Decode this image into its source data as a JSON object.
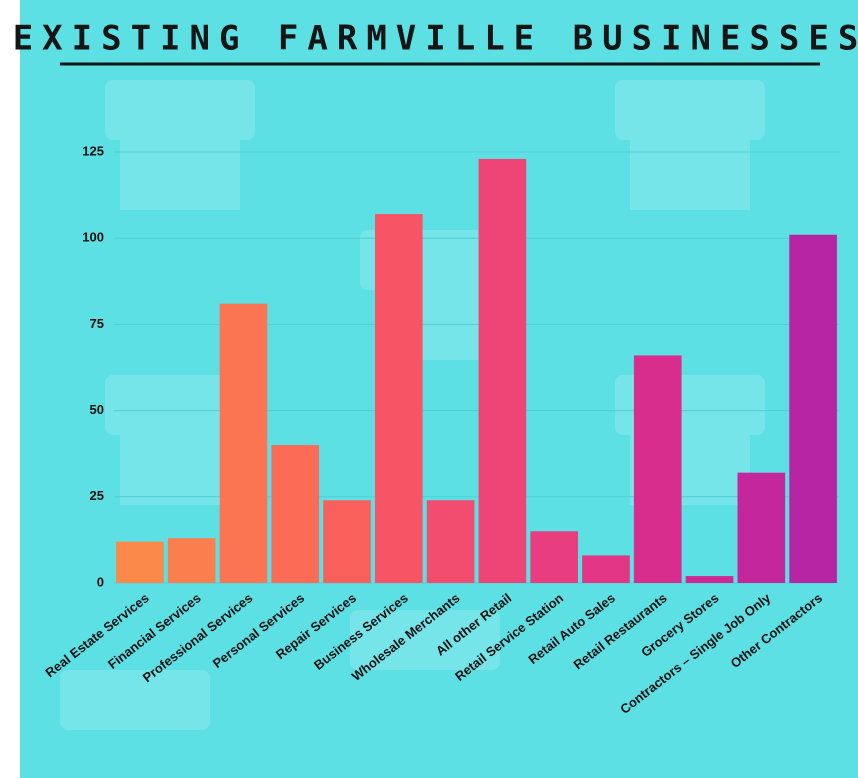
{
  "chart_data": {
    "type": "bar",
    "title": "EXISTING FARMVILLE BUSINESSES",
    "categories": [
      "Real Estate Services",
      "Financial Services",
      "Professional Services",
      "Personal Services",
      "Repair Services",
      "Business Services",
      "Wholesale Merchants",
      "All other Retail",
      "Retail Service Station",
      "Retail Auto Sales",
      "Retail Restaurants",
      "Grocery Stores",
      "Contractors – Single Job Only",
      "Other Contractors"
    ],
    "values": [
      12,
      13,
      81,
      40,
      24,
      107,
      24,
      123,
      15,
      8,
      66,
      2,
      32,
      101
    ],
    "colors": [
      "#fb8a4a",
      "#fb7f4e",
      "#fb7552",
      "#fb6b56",
      "#fa605b",
      "#f75566",
      "#f24c6e",
      "#ee4476",
      "#e83d7e",
      "#e23586",
      "#d92d8e",
      "#cf2895",
      "#c4269c",
      "#b825a4"
    ],
    "ylim": [
      0,
      125
    ],
    "yticks": [
      0,
      25,
      50,
      75,
      100,
      125
    ],
    "grid": true
  }
}
